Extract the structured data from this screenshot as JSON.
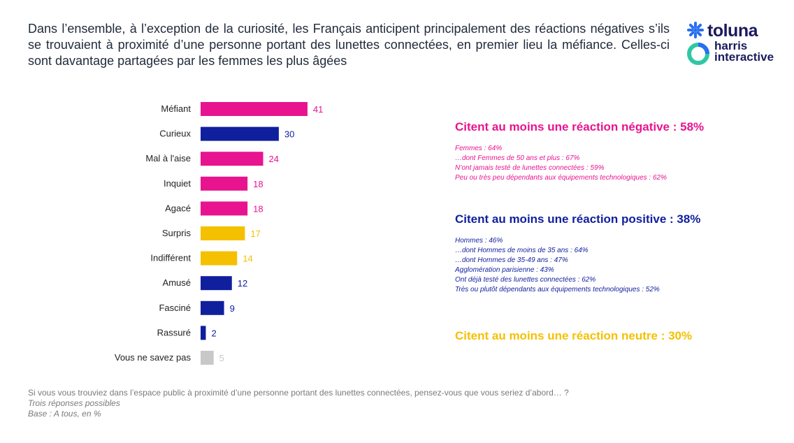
{
  "headline": "Dans l’ensemble, à l’exception de la curiosité, les Français anticipent principalement des réactions négatives s’ils se trouvaient à proximité d’une personne portant des lunettes connectées, en premier lieu la méfiance. Celles-ci sont davantage partagées par les femmes les plus âgées",
  "logo": {
    "line1": "toluna",
    "line2a": "harris",
    "line2b": "interactive"
  },
  "colors": {
    "negative": "#e8148f",
    "positive": "#0f1f9e",
    "neutral": "#f5c000",
    "nsp": "#c8c8c8"
  },
  "chart_data": {
    "type": "bar",
    "orientation": "horizontal",
    "categories": [
      "Méfiant",
      "Curieux",
      "Mal à l'aise",
      "Inquiet",
      "Agacé",
      "Surpris",
      "Indifférent",
      "Amusé",
      "Fasciné",
      "Rassuré",
      "Vous ne savez pas"
    ],
    "values": [
      41,
      30,
      24,
      18,
      18,
      17,
      14,
      12,
      9,
      2,
      5
    ],
    "color_groups": [
      "negative",
      "positive",
      "negative",
      "negative",
      "negative",
      "neutral",
      "neutral",
      "positive",
      "positive",
      "positive",
      "nsp"
    ],
    "unit": "%",
    "xlim": [
      0,
      100
    ]
  },
  "panels": {
    "negative": {
      "title": "Citent au moins une réaction négative : 58%",
      "items": [
        "Femmes : 64%",
        "…dont Femmes de 50 ans et plus : 67%",
        "N’ont jamais testé de lunettes connectées : 59%",
        "Peu ou très peu dépendants aux équipements technologiques : 62%"
      ]
    },
    "positive": {
      "title": "Citent au moins une réaction positive : 38%",
      "items": [
        "Hommes : 46%",
        "…dont Hommes de moins de 35 ans : 64%",
        "…dont Hommes de 35-49 ans : 47%",
        "Agglomération parisienne : 43%",
        "Ont déjà testé des lunettes connectées : 62%",
        "Très ou plutôt dépendants aux équipements technologiques : 52%"
      ]
    },
    "neutral": {
      "title": "Citent au moins une réaction neutre : 30%"
    }
  },
  "footnote": {
    "question": "Si vous vous trouviez dans l’espace public à proximité d’une personne portant des lunettes connectées, pensez-vous que vous seriez d’abord… ?",
    "note1": "Trois réponses possibles",
    "note2": "Base : A tous, en %"
  }
}
